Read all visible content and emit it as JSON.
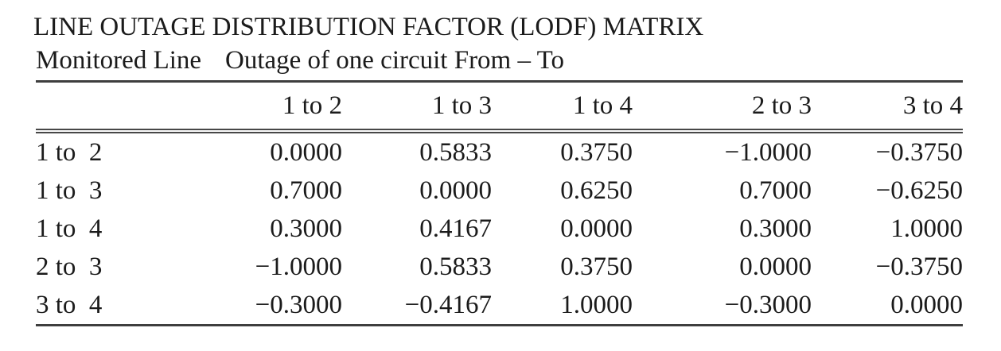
{
  "title": "LINE OUTAGE DISTRIBUTION FACTOR (LODF) MATRIX",
  "table": {
    "row_header_label": "Monitored Line",
    "col_group_label": "Outage of one circuit From – To",
    "columns": [
      "1 to 2",
      "1 to 3",
      "1 to 4",
      "2 to 3",
      "3 to 4"
    ],
    "rows": [
      {
        "label": "1 to  2",
        "values": [
          "0.0000",
          "0.5833",
          "0.3750",
          "−1.0000",
          "−0.3750"
        ]
      },
      {
        "label": "1 to  3",
        "values": [
          "0.7000",
          "0.0000",
          "0.6250",
          "0.7000",
          "−0.6250"
        ]
      },
      {
        "label": "1 to  4",
        "values": [
          "0.3000",
          "0.4167",
          "0.0000",
          "0.3000",
          "1.0000"
        ]
      },
      {
        "label": "2 to  3",
        "values": [
          "−1.0000",
          "0.5833",
          "0.3750",
          "0.0000",
          "−0.3750"
        ]
      },
      {
        "label": "3 to  4",
        "values": [
          "−0.3000",
          "−0.4167",
          "1.0000",
          "−0.3000",
          "0.0000"
        ]
      }
    ]
  },
  "colors": {
    "background": "#ffffff",
    "text": "#1b1b1b",
    "rule": "#3e3e3e"
  }
}
